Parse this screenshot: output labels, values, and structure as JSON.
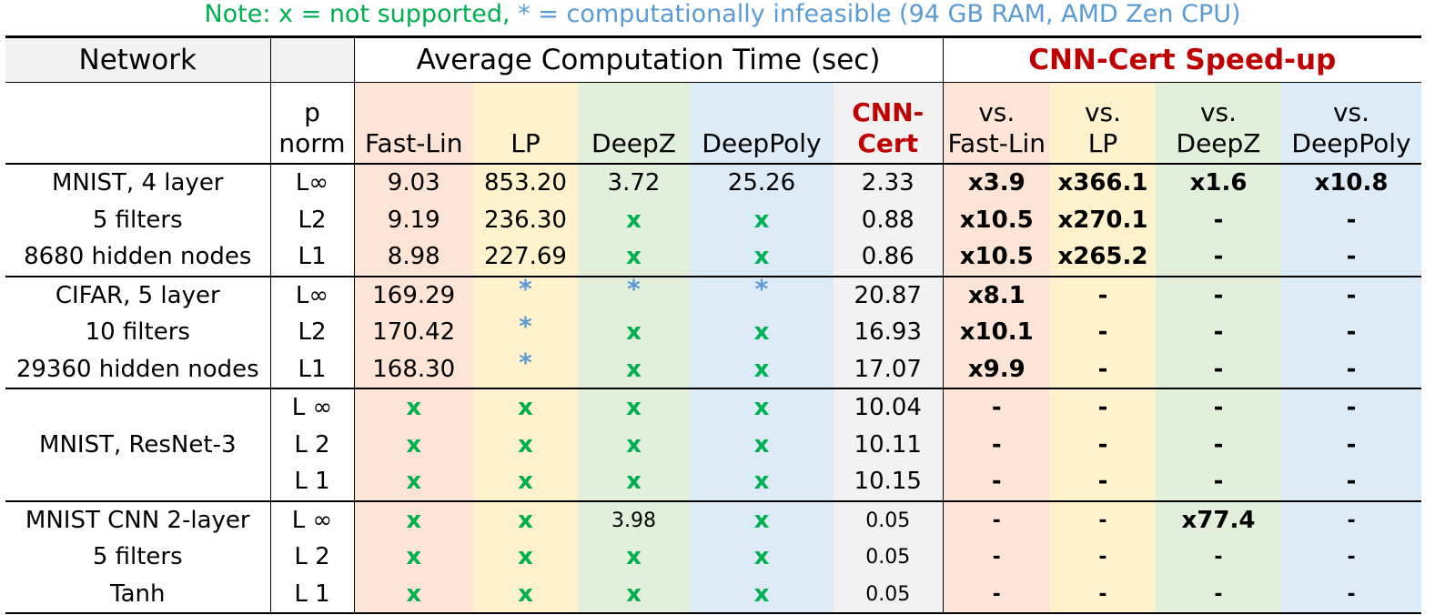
{
  "note": {
    "part1": "Note: x = not supported",
    "sep": ",",
    "part2": " * = computationally infeasible (94 GB RAM, AMD Zen CPU)"
  },
  "header": {
    "network": "Network",
    "avg_time": "Average Computation Time (sec)",
    "speedup": "CNN-Cert Speed-up",
    "p_line1": "p",
    "p_line2": "norm",
    "fastlin": "Fast-Lin",
    "lp": "LP",
    "deepz": "DeepZ",
    "deeppoly": "DeepPoly",
    "cnn_line1": "CNN-",
    "cnn_line2": "Cert",
    "vs": "vs.",
    "vs_fastlin": "Fast-Lin",
    "vs_lp": "LP",
    "vs_deepz": "DeepZ",
    "vs_deeppoly": "DeepPoly"
  },
  "rows": [
    {
      "net": "MNIST, 4 layer",
      "p": "L∞",
      "fl": "9.03",
      "lp": "853.20",
      "dz": "3.72",
      "dp": "25.26",
      "cnn": "2.33",
      "s1": "x3.9",
      "s2": "x366.1",
      "s3": "x1.6",
      "s4": "x10.8"
    },
    {
      "net": "5 filters",
      "p": "L2",
      "fl": "9.19",
      "lp": "236.30",
      "dz": "x",
      "dp": "x",
      "cnn": "0.88",
      "s1": "x10.5",
      "s2": "x270.1",
      "s3": "-",
      "s4": "-"
    },
    {
      "net": "8680 hidden nodes",
      "p": "L1",
      "fl": "8.98",
      "lp": "227.69",
      "dz": "x",
      "dp": "x",
      "cnn": "0.86",
      "s1": "x10.5",
      "s2": "x265.2",
      "s3": "-",
      "s4": "-"
    },
    {
      "net": "CIFAR, 5 layer",
      "p": "L∞",
      "fl": "169.29",
      "lp": "*",
      "dz": "*",
      "dp": "*",
      "cnn": "20.87",
      "s1": "x8.1",
      "s2": "-",
      "s3": "-",
      "s4": "-"
    },
    {
      "net": "10 filters",
      "p": "L2",
      "fl": "170.42",
      "lp": "*",
      "dz": "x",
      "dp": "x",
      "cnn": "16.93",
      "s1": "x10.1",
      "s2": "-",
      "s3": "-",
      "s4": "-"
    },
    {
      "net": "29360 hidden nodes",
      "p": "L1",
      "fl": "168.30",
      "lp": "*",
      "dz": "x",
      "dp": "x",
      "cnn": "17.07",
      "s1": "x9.9",
      "s2": "-",
      "s3": "-",
      "s4": "-"
    },
    {
      "net": "",
      "p": "L ∞",
      "fl": "x",
      "lp": "x",
      "dz": "x",
      "dp": "x",
      "cnn": "10.04",
      "s1": "-",
      "s2": "-",
      "s3": "-",
      "s4": "-"
    },
    {
      "net": "MNIST, ResNet-3",
      "p": "L 2",
      "fl": "x",
      "lp": "x",
      "dz": "x",
      "dp": "x",
      "cnn": "10.11",
      "s1": "-",
      "s2": "-",
      "s3": "-",
      "s4": "-"
    },
    {
      "net": "",
      "p": "L 1",
      "fl": "x",
      "lp": "x",
      "dz": "x",
      "dp": "x",
      "cnn": "10.15",
      "s1": "-",
      "s2": "-",
      "s3": "-",
      "s4": "-"
    },
    {
      "net": "MNIST CNN 2-layer",
      "p": "L ∞",
      "fl": "x",
      "lp": "x",
      "dz": "3.98",
      "dp": "x",
      "cnn": "0.05",
      "s1": "-",
      "s2": "-",
      "s3": "x77.4",
      "s4": "-"
    },
    {
      "net": "5 filters",
      "p": "L 2",
      "fl": "x",
      "lp": "x",
      "dz": "x",
      "dp": "x",
      "cnn": "0.05",
      "s1": "-",
      "s2": "-",
      "s3": "-",
      "s4": "-"
    },
    {
      "net": "Tanh",
      "p": "L 1",
      "fl": "x",
      "lp": "x",
      "dz": "x",
      "dp": "x",
      "cnn": "0.05",
      "s1": "-",
      "s2": "-",
      "s3": "-",
      "s4": "-"
    }
  ],
  "colors": {
    "not_supported": "#00b050",
    "infeasible": "#5b9bd5",
    "highlight_red": "#c00000",
    "fastlin_bg": "#fce4d6",
    "lp_bg": "#fff2cc",
    "deepz_bg": "#e2efda",
    "deeppoly_bg": "#ddebf7",
    "cnncert_bg": "#f2f2f2"
  }
}
